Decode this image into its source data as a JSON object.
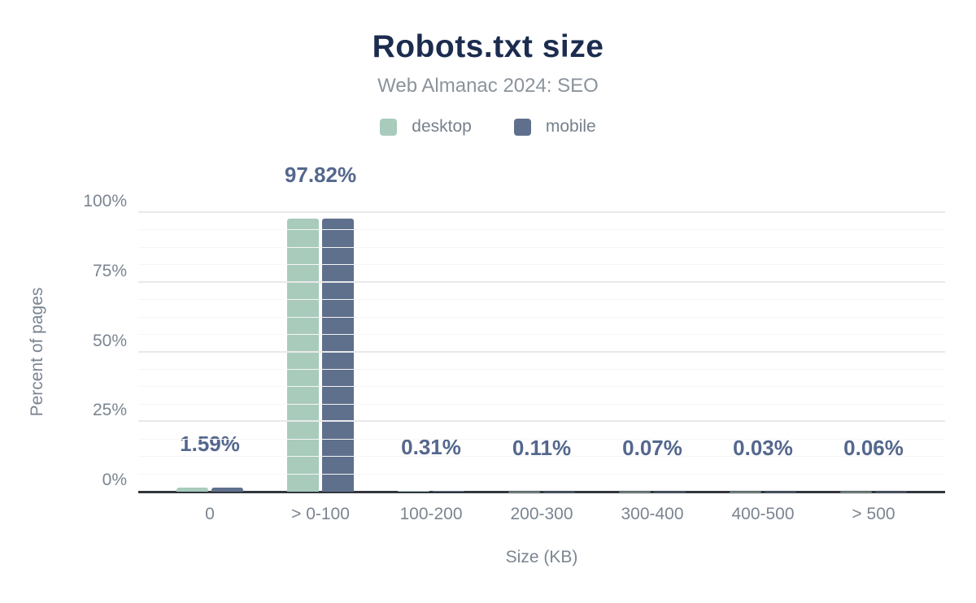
{
  "title": "Robots.txt size",
  "subtitle": "Web Almanac 2024: SEO",
  "colors": {
    "title": "#1b2c4f",
    "subtitle": "#8b939c",
    "axis_text": "#7b8591",
    "data_label": "#54678d",
    "axis_line": "#32363c",
    "desktop": "#a8cbbc",
    "mobile": "#5f708c"
  },
  "chart_data": {
    "type": "bar",
    "categories": [
      "0",
      "> 0-100",
      "100-200",
      "200-300",
      "300-400",
      "400-500",
      "> 500"
    ],
    "series": [
      {
        "name": "desktop",
        "color": "#a8cbbc",
        "values": [
          1.59,
          97.82,
          0.31,
          0.11,
          0.07,
          0.03,
          0.06
        ]
      },
      {
        "name": "mobile",
        "color": "#5f708c",
        "values": [
          1.59,
          97.82,
          0.31,
          0.11,
          0.07,
          0.03,
          0.06
        ]
      }
    ],
    "data_labels": [
      "1.59%",
      "97.82%",
      "0.31%",
      "0.11%",
      "0.07%",
      "0.03%",
      "0.06%"
    ],
    "title": "Robots.txt size",
    "xlabel": "Size (KB)",
    "ylabel": "Percent of pages",
    "y_ticks": [
      "0%",
      "25%",
      "50%",
      "75%",
      "100%"
    ],
    "ylim": [
      0,
      100
    ],
    "y_major_step": 25,
    "y_minor_step": 6.25,
    "grid": true,
    "legend_position": "top"
  }
}
